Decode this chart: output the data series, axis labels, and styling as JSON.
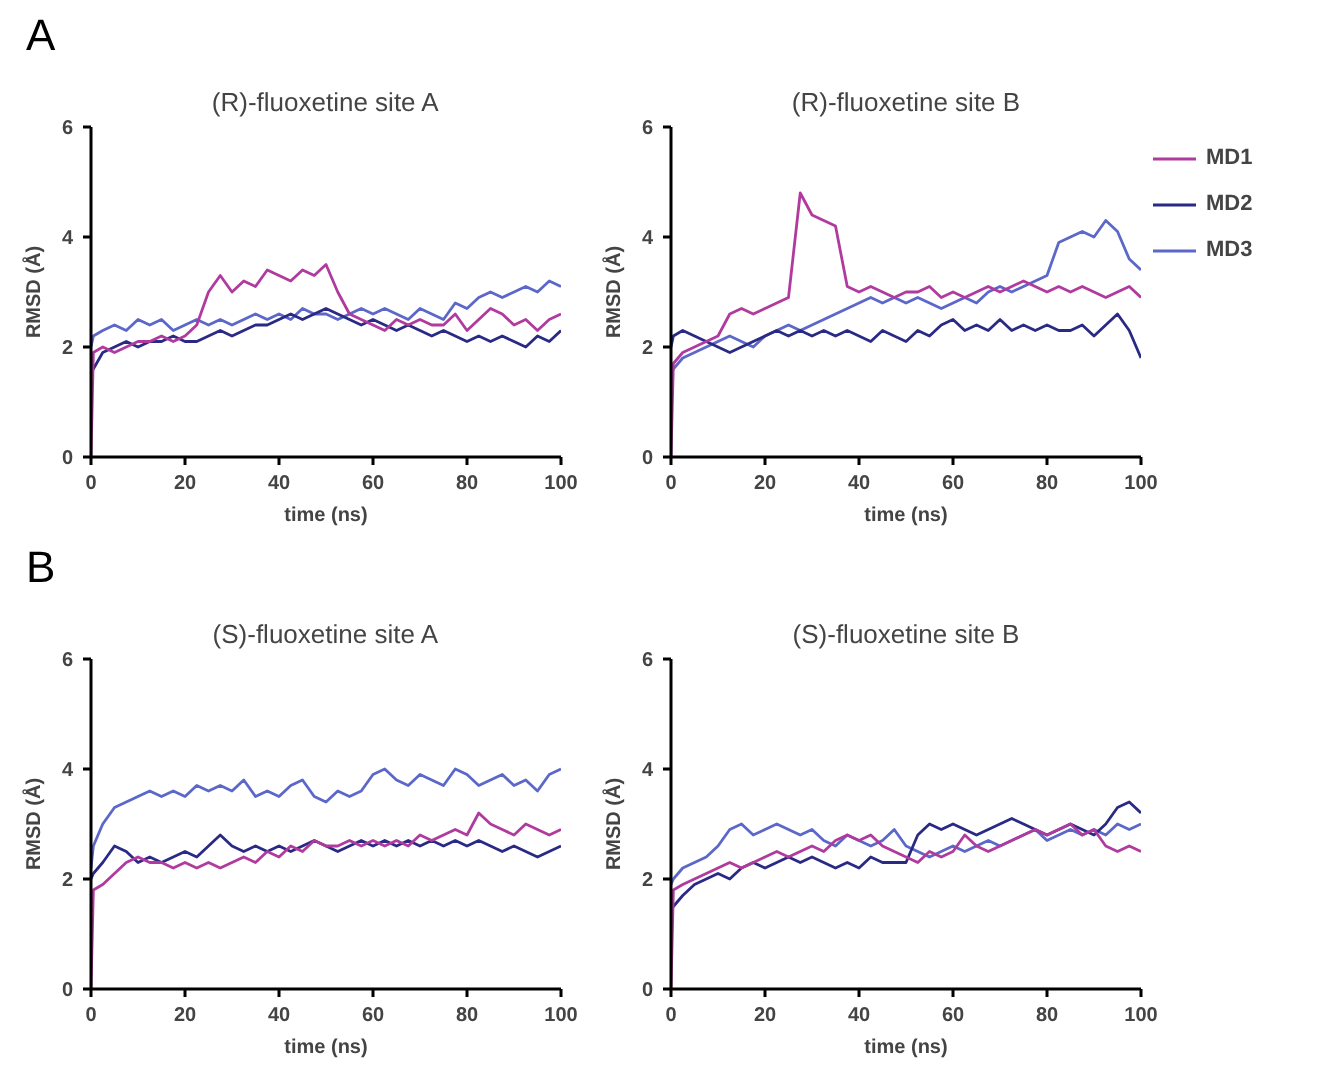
{
  "chart_data": [
    {
      "type": "line",
      "title": "(R)-fluoxetine site A",
      "annotations": [
        "A"
      ],
      "xlabel": "time (ns)",
      "ylabel": "RMSD (Å)",
      "xlim": [
        0,
        100
      ],
      "ylim": [
        0,
        6
      ],
      "xticks": [
        0,
        20,
        40,
        60,
        80,
        100
      ],
      "yticks": [
        0,
        2,
        4,
        6
      ],
      "grid": false,
      "x": [
        0,
        0.5,
        2.5,
        5,
        7.5,
        10,
        12.5,
        15,
        17.5,
        20,
        22.5,
        25,
        27.5,
        30,
        32.5,
        35,
        37.5,
        40,
        42.5,
        45,
        47.5,
        50,
        52.5,
        55,
        57.5,
        60,
        62.5,
        65,
        67.5,
        70,
        72.5,
        75,
        77.5,
        80,
        82.5,
        85,
        87.5,
        90,
        92.5,
        95,
        97.5,
        100
      ],
      "series": [
        {
          "color": "#b03a9e",
          "values": [
            0,
            1.9,
            2.0,
            1.9,
            2.0,
            2.1,
            2.1,
            2.2,
            2.1,
            2.2,
            2.4,
            3.0,
            3.3,
            3.0,
            3.2,
            3.1,
            3.4,
            3.3,
            3.2,
            3.4,
            3.3,
            3.5,
            3.0,
            2.6,
            2.5,
            2.4,
            2.3,
            2.5,
            2.4,
            2.5,
            2.4,
            2.4,
            2.6,
            2.3,
            2.5,
            2.7,
            2.6,
            2.4,
            2.5,
            2.3,
            2.5,
            2.6
          ]
        },
        {
          "color": "#2a2a86",
          "values": [
            1.6,
            1.6,
            1.9,
            2.0,
            2.1,
            2.0,
            2.1,
            2.1,
            2.2,
            2.1,
            2.1,
            2.2,
            2.3,
            2.2,
            2.3,
            2.4,
            2.4,
            2.5,
            2.6,
            2.5,
            2.6,
            2.7,
            2.6,
            2.5,
            2.4,
            2.5,
            2.4,
            2.3,
            2.4,
            2.3,
            2.2,
            2.3,
            2.2,
            2.1,
            2.2,
            2.1,
            2.2,
            2.1,
            2.0,
            2.2,
            2.1,
            2.3
          ]
        },
        {
          "color": "#5b67c9",
          "values": [
            2.0,
            2.2,
            2.3,
            2.4,
            2.3,
            2.5,
            2.4,
            2.5,
            2.3,
            2.4,
            2.5,
            2.4,
            2.5,
            2.4,
            2.5,
            2.6,
            2.5,
            2.6,
            2.5,
            2.7,
            2.6,
            2.6,
            2.5,
            2.6,
            2.7,
            2.6,
            2.7,
            2.6,
            2.5,
            2.7,
            2.6,
            2.5,
            2.8,
            2.7,
            2.9,
            3.0,
            2.9,
            3.0,
            3.1,
            3.0,
            3.2,
            3.1
          ]
        }
      ]
    },
    {
      "type": "line",
      "title": "(R)-fluoxetine site B",
      "xlabel": "time (ns)",
      "ylabel": "RMSD (Å)",
      "xlim": [
        0,
        100
      ],
      "ylim": [
        0,
        6
      ],
      "xticks": [
        0,
        20,
        40,
        60,
        80,
        100
      ],
      "yticks": [
        0,
        2,
        4,
        6
      ],
      "grid": false,
      "legend": "right",
      "x": [
        0,
        0.5,
        2.5,
        5,
        7.5,
        10,
        12.5,
        15,
        17.5,
        20,
        22.5,
        25,
        27.5,
        30,
        32.5,
        35,
        37.5,
        40,
        42.5,
        45,
        47.5,
        50,
        52.5,
        55,
        57.5,
        60,
        62.5,
        65,
        67.5,
        70,
        72.5,
        75,
        77.5,
        80,
        82.5,
        85,
        87.5,
        90,
        92.5,
        95,
        97.5,
        100
      ],
      "series": [
        {
          "name": "MD1",
          "color": "#b03a9e",
          "values": [
            0,
            1.7,
            1.9,
            2.0,
            2.1,
            2.2,
            2.6,
            2.7,
            2.6,
            2.7,
            2.8,
            2.9,
            4.8,
            4.4,
            4.3,
            4.2,
            3.1,
            3.0,
            3.1,
            3.0,
            2.9,
            3.0,
            3.0,
            3.1,
            2.9,
            3.0,
            2.9,
            3.0,
            3.1,
            3.0,
            3.1,
            3.2,
            3.1,
            3.0,
            3.1,
            3.0,
            3.1,
            3.0,
            2.9,
            3.0,
            3.1,
            2.9
          ]
        },
        {
          "name": "MD2",
          "color": "#2a2a86",
          "values": [
            2.0,
            2.2,
            2.3,
            2.2,
            2.1,
            2.0,
            1.9,
            2.0,
            2.1,
            2.2,
            2.3,
            2.2,
            2.3,
            2.2,
            2.3,
            2.2,
            2.3,
            2.2,
            2.1,
            2.3,
            2.2,
            2.1,
            2.3,
            2.2,
            2.4,
            2.5,
            2.3,
            2.4,
            2.3,
            2.5,
            2.3,
            2.4,
            2.3,
            2.4,
            2.3,
            2.3,
            2.4,
            2.2,
            2.4,
            2.6,
            2.3,
            1.8
          ]
        },
        {
          "name": "MD3",
          "color": "#5b67c9",
          "values": [
            1.5,
            1.6,
            1.8,
            1.9,
            2.0,
            2.1,
            2.2,
            2.1,
            2.0,
            2.2,
            2.3,
            2.4,
            2.3,
            2.4,
            2.5,
            2.6,
            2.7,
            2.8,
            2.9,
            2.8,
            2.9,
            2.8,
            2.9,
            2.8,
            2.7,
            2.8,
            2.9,
            2.8,
            3.0,
            3.1,
            3.0,
            3.1,
            3.2,
            3.3,
            3.9,
            4.0,
            4.1,
            4.0,
            4.3,
            4.1,
            3.6,
            3.4
          ]
        }
      ]
    },
    {
      "type": "line",
      "title": "(S)-fluoxetine site A",
      "annotations": [
        "B"
      ],
      "xlabel": "time (ns)",
      "ylabel": "RMSD (Å)",
      "xlim": [
        0,
        100
      ],
      "ylim": [
        0,
        6
      ],
      "xticks": [
        0,
        20,
        40,
        60,
        80,
        100
      ],
      "yticks": [
        0,
        2,
        4,
        6
      ],
      "grid": false,
      "x": [
        0,
        0.5,
        2.5,
        5,
        7.5,
        10,
        12.5,
        15,
        17.5,
        20,
        22.5,
        25,
        27.5,
        30,
        32.5,
        35,
        37.5,
        40,
        42.5,
        45,
        47.5,
        50,
        52.5,
        55,
        57.5,
        60,
        62.5,
        65,
        67.5,
        70,
        72.5,
        75,
        77.5,
        80,
        82.5,
        85,
        87.5,
        90,
        92.5,
        95,
        97.5,
        100
      ],
      "series": [
        {
          "color": "#b03a9e",
          "values": [
            0,
            1.8,
            1.9,
            2.1,
            2.3,
            2.4,
            2.3,
            2.3,
            2.2,
            2.3,
            2.2,
            2.3,
            2.2,
            2.3,
            2.4,
            2.3,
            2.5,
            2.4,
            2.6,
            2.5,
            2.7,
            2.6,
            2.6,
            2.7,
            2.6,
            2.7,
            2.6,
            2.7,
            2.6,
            2.8,
            2.7,
            2.8,
            2.9,
            2.8,
            3.2,
            3.0,
            2.9,
            2.8,
            3.0,
            2.9,
            2.8,
            2.9
          ]
        },
        {
          "color": "#2a2a86",
          "values": [
            2.0,
            2.1,
            2.3,
            2.6,
            2.5,
            2.3,
            2.4,
            2.3,
            2.4,
            2.5,
            2.4,
            2.6,
            2.8,
            2.6,
            2.5,
            2.6,
            2.5,
            2.6,
            2.5,
            2.6,
            2.7,
            2.6,
            2.5,
            2.6,
            2.7,
            2.6,
            2.7,
            2.6,
            2.7,
            2.6,
            2.7,
            2.6,
            2.7,
            2.6,
            2.7,
            2.6,
            2.5,
            2.6,
            2.5,
            2.4,
            2.5,
            2.6
          ]
        },
        {
          "color": "#5b67c9",
          "values": [
            2.2,
            2.6,
            3.0,
            3.3,
            3.4,
            3.5,
            3.6,
            3.5,
            3.6,
            3.5,
            3.7,
            3.6,
            3.7,
            3.6,
            3.8,
            3.5,
            3.6,
            3.5,
            3.7,
            3.8,
            3.5,
            3.4,
            3.6,
            3.5,
            3.6,
            3.9,
            4.0,
            3.8,
            3.7,
            3.9,
            3.8,
            3.7,
            4.0,
            3.9,
            3.7,
            3.8,
            3.9,
            3.7,
            3.8,
            3.6,
            3.9,
            4.0
          ]
        }
      ]
    },
    {
      "type": "line",
      "title": "(S)-fluoxetine site B",
      "xlabel": "time (ns)",
      "ylabel": "RMSD (Å)",
      "xlim": [
        0,
        100
      ],
      "ylim": [
        0,
        6
      ],
      "xticks": [
        0,
        20,
        40,
        60,
        80,
        100
      ],
      "yticks": [
        0,
        2,
        4,
        6
      ],
      "grid": false,
      "x": [
        0,
        0.5,
        2.5,
        5,
        7.5,
        10,
        12.5,
        15,
        17.5,
        20,
        22.5,
        25,
        27.5,
        30,
        32.5,
        35,
        37.5,
        40,
        42.5,
        45,
        47.5,
        50,
        52.5,
        55,
        57.5,
        60,
        62.5,
        65,
        67.5,
        70,
        72.5,
        75,
        77.5,
        80,
        82.5,
        85,
        87.5,
        90,
        92.5,
        95,
        97.5,
        100
      ],
      "series": [
        {
          "color": "#b03a9e",
          "values": [
            0,
            1.8,
            1.9,
            2.0,
            2.1,
            2.2,
            2.3,
            2.2,
            2.3,
            2.4,
            2.5,
            2.4,
            2.5,
            2.6,
            2.5,
            2.7,
            2.8,
            2.7,
            2.8,
            2.6,
            2.5,
            2.4,
            2.3,
            2.5,
            2.4,
            2.5,
            2.8,
            2.6,
            2.5,
            2.6,
            2.7,
            2.8,
            2.9,
            2.8,
            2.9,
            3.0,
            2.8,
            2.9,
            2.6,
            2.5,
            2.6,
            2.5
          ]
        },
        {
          "color": "#2a2a86",
          "values": [
            1.4,
            1.5,
            1.7,
            1.9,
            2.0,
            2.1,
            2.0,
            2.2,
            2.3,
            2.2,
            2.3,
            2.4,
            2.3,
            2.4,
            2.3,
            2.2,
            2.3,
            2.2,
            2.4,
            2.3,
            2.3,
            2.3,
            2.8,
            3.0,
            2.9,
            3.0,
            2.9,
            2.8,
            2.9,
            3.0,
            3.1,
            3.0,
            2.9,
            2.8,
            2.9,
            3.0,
            2.9,
            2.8,
            3.0,
            3.3,
            3.4,
            3.2
          ]
        },
        {
          "color": "#5b67c9",
          "values": [
            1.9,
            2.0,
            2.2,
            2.3,
            2.4,
            2.6,
            2.9,
            3.0,
            2.8,
            2.9,
            3.0,
            2.9,
            2.8,
            2.9,
            2.7,
            2.6,
            2.8,
            2.7,
            2.6,
            2.7,
            2.9,
            2.6,
            2.5,
            2.4,
            2.5,
            2.6,
            2.5,
            2.6,
            2.7,
            2.6,
            2.7,
            2.8,
            2.9,
            2.7,
            2.8,
            2.9,
            2.8,
            2.9,
            2.8,
            3.0,
            2.9,
            3.0
          ]
        }
      ]
    }
  ]
}
